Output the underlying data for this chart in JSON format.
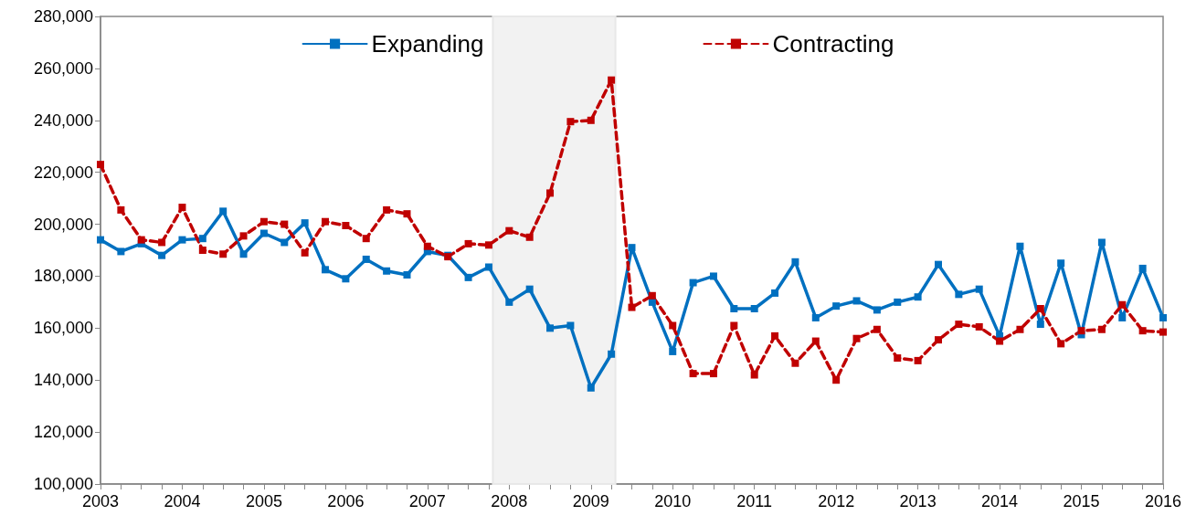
{
  "chart_data": {
    "type": "line",
    "x": [
      2003,
      2003.25,
      2003.5,
      2003.75,
      2004,
      2004.25,
      2004.5,
      2004.75,
      2005,
      2005.25,
      2005.5,
      2005.75,
      2006,
      2006.25,
      2006.5,
      2006.75,
      2007,
      2007.25,
      2007.5,
      2007.75,
      2008,
      2008.25,
      2008.5,
      2008.75,
      2009,
      2009.25,
      2009.5,
      2009.75,
      2010,
      2010.25,
      2010.5,
      2010.75,
      2011,
      2011.25,
      2011.5,
      2011.75,
      2012,
      2012.25,
      2012.5,
      2012.75,
      2013,
      2013.25,
      2013.5,
      2013.75,
      2014,
      2014.25,
      2014.5,
      2014.75,
      2015,
      2015.25,
      2015.5,
      2015.75,
      2016
    ],
    "series": [
      {
        "name": "Expanding",
        "color": "#0070c0",
        "line_style": "solid",
        "values": [
          194000,
          189500,
          192500,
          188000,
          194000,
          194500,
          205000,
          188500,
          196500,
          193000,
          200500,
          182500,
          179000,
          186500,
          182000,
          180500,
          189500,
          188000,
          179500,
          183500,
          170000,
          175000,
          160000,
          161000,
          137000,
          150000,
          191000,
          170000,
          151000,
          177500,
          180000,
          167500,
          167500,
          173500,
          185500,
          164000,
          168500,
          170500,
          167000,
          170000,
          172000,
          184500,
          173000,
          175000,
          157000,
          191500,
          161500,
          185000,
          157500,
          193000,
          164000,
          183000,
          164000
        ]
      },
      {
        "name": "Contracting",
        "color": "#c00000",
        "line_style": "dashed",
        "values": [
          223000,
          205500,
          194000,
          193000,
          206500,
          190000,
          188500,
          195500,
          201000,
          200000,
          189000,
          201000,
          199500,
          194500,
          205500,
          204000,
          191500,
          187500,
          192500,
          192000,
          197500,
          195000,
          212000,
          239500,
          240000,
          255500,
          168000,
          172500,
          161000,
          142500,
          142500,
          161000,
          142000,
          157000,
          146500,
          155000,
          140000,
          156000,
          159500,
          148500,
          147500,
          155500,
          161500,
          160500,
          155000,
          159500,
          167500,
          154000,
          159000,
          159500,
          169000,
          159000,
          158500
        ]
      }
    ],
    "xlim": [
      2003,
      2016
    ],
    "xticks": [
      2003,
      {
        "value": 2003.25,
        "label": null
      },
      {
        "value": 2003.5,
        "label": null
      },
      {
        "value": 2003.75,
        "label": null
      },
      2004,
      {
        "value": 2004.25,
        "label": null
      },
      {
        "value": 2004.5,
        "label": null
      },
      {
        "value": 2004.75,
        "label": null
      },
      2005,
      {
        "value": 2005.25,
        "label": null
      },
      {
        "value": 2005.5,
        "label": null
      },
      {
        "value": 2005.75,
        "label": null
      },
      2006,
      {
        "value": 2006.25,
        "label": null
      },
      {
        "value": 2006.5,
        "label": null
      },
      {
        "value": 2006.75,
        "label": null
      },
      2007,
      {
        "value": 2007.25,
        "label": null
      },
      {
        "value": 2007.5,
        "label": null
      },
      {
        "value": 2007.75,
        "label": null
      },
      2008,
      {
        "value": 2008.25,
        "label": null
      },
      {
        "value": 2008.5,
        "label": null
      },
      {
        "value": 2008.75,
        "label": null
      },
      2009,
      {
        "value": 2009.25,
        "label": null
      },
      {
        "value": 2009.5,
        "label": null
      },
      {
        "value": 2009.75,
        "label": null
      },
      2010,
      {
        "value": 2010.25,
        "label": null
      },
      {
        "value": 2010.5,
        "label": null
      },
      {
        "value": 2010.75,
        "label": null
      },
      2011,
      {
        "value": 2011.25,
        "label": null
      },
      {
        "value": 2011.5,
        "label": null
      },
      {
        "value": 2011.75,
        "label": null
      },
      2012,
      {
        "value": 2012.25,
        "label": null
      },
      {
        "value": 2012.5,
        "label": null
      },
      {
        "value": 2012.75,
        "label": null
      },
      2013,
      {
        "value": 2013.25,
        "label": null
      },
      {
        "value": 2013.5,
        "label": null
      },
      {
        "value": 2013.75,
        "label": null
      },
      2014,
      {
        "value": 2014.25,
        "label": null
      },
      {
        "value": 2014.5,
        "label": null
      },
      {
        "value": 2014.75,
        "label": null
      },
      2015,
      {
        "value": 2015.25,
        "label": null
      },
      {
        "value": 2015.5,
        "label": null
      },
      {
        "value": 2015.75,
        "label": null
      },
      2016
    ],
    "ylim": [
      100000,
      280000
    ],
    "yticks": [
      {
        "value": 100000,
        "label": "100,000"
      },
      {
        "value": 120000,
        "label": "120,000"
      },
      {
        "value": 140000,
        "label": "140,000"
      },
      {
        "value": 160000,
        "label": "160,000"
      },
      {
        "value": 180000,
        "label": "180,000"
      },
      {
        "value": 200000,
        "label": "200,000"
      },
      {
        "value": 220000,
        "label": "220,000"
      },
      {
        "value": 240000,
        "label": "240,000"
      },
      {
        "value": 260000,
        "label": "260,000"
      },
      {
        "value": 280000,
        "label": "280,000"
      }
    ],
    "bands": [
      {
        "axis": "x",
        "from": 2007.8,
        "to": 2009.3,
        "color": "#f2f2f2"
      }
    ],
    "marker": "square",
    "grid": false,
    "legend": "top"
  }
}
